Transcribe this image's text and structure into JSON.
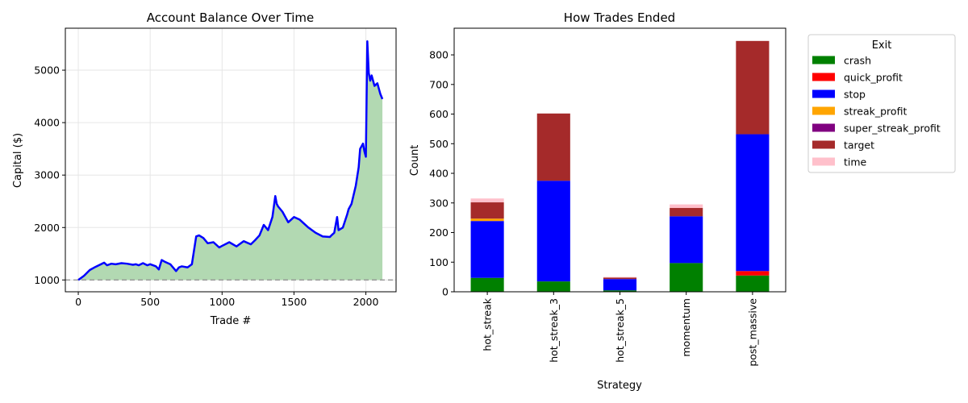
{
  "chart_data": [
    {
      "type": "area",
      "title": "Account Balance Over Time",
      "xlabel": "Trade #",
      "ylabel": "Capital ($)",
      "xlim": [
        -90,
        2210
      ],
      "ylim": [
        775,
        5800
      ],
      "xticks": [
        0,
        500,
        1000,
        1500,
        2000
      ],
      "yticks": [
        1000,
        2000,
        3000,
        4000,
        5000
      ],
      "grid": true,
      "line_color": "#0000ff",
      "fill_color": "#b2d9b2",
      "baseline": {
        "value": 1000,
        "style": "dashed",
        "color": "#999999"
      },
      "series": [
        {
          "x": [
            0,
            40,
            80,
            120,
            150,
            180,
            200,
            230,
            260,
            300,
            340,
            380,
            400,
            420,
            450,
            480,
            500,
            540,
            560,
            580,
            600,
            640,
            680,
            700,
            720,
            760,
            790,
            820,
            840,
            870,
            900,
            940,
            980,
            1000,
            1050,
            1100,
            1150,
            1200,
            1230,
            1260,
            1290,
            1320,
            1350,
            1370,
            1380,
            1390,
            1420,
            1460,
            1500,
            1540,
            1560,
            1600,
            1650,
            1700,
            1750,
            1760,
            1780,
            1800,
            1810,
            1840,
            1870,
            1880,
            1900,
            1930,
            1950,
            1960,
            1980,
            1990,
            2000,
            2010,
            2020,
            2030,
            2040,
            2060,
            2080,
            2100,
            2115
          ],
          "y": [
            1000,
            1080,
            1190,
            1250,
            1290,
            1330,
            1280,
            1310,
            1300,
            1320,
            1310,
            1290,
            1300,
            1280,
            1320,
            1280,
            1300,
            1260,
            1200,
            1380,
            1350,
            1300,
            1170,
            1240,
            1260,
            1240,
            1300,
            1830,
            1850,
            1800,
            1700,
            1720,
            1620,
            1650,
            1720,
            1640,
            1740,
            1680,
            1760,
            1850,
            2050,
            1950,
            2200,
            2600,
            2450,
            2400,
            2300,
            2100,
            2200,
            2150,
            2100,
            2000,
            1900,
            1830,
            1820,
            1850,
            1900,
            2200,
            1950,
            2000,
            2250,
            2350,
            2450,
            2800,
            3150,
            3500,
            3600,
            3450,
            3350,
            5550,
            4950,
            4800,
            4900,
            4700,
            4750,
            4550,
            4450
          ]
        }
      ]
    },
    {
      "type": "bar",
      "stacked": true,
      "title": "How Trades Ended",
      "xlabel": "Strategy",
      "ylabel": "Count",
      "ylim": [
        0,
        890
      ],
      "yticks": [
        0,
        100,
        200,
        300,
        400,
        500,
        600,
        700,
        800
      ],
      "categories": [
        "hot_streak",
        "hot_streak_3",
        "hot_streak_5",
        "momentum",
        "post_massive"
      ],
      "legend": {
        "title": "Exit",
        "placement": "outside upper right"
      },
      "series": [
        {
          "name": "crash",
          "color": "#008000",
          "values": [
            47,
            35,
            5,
            97,
            55
          ]
        },
        {
          "name": "quick_profit",
          "color": "#ff0000",
          "values": [
            0,
            0,
            0,
            0,
            15
          ]
        },
        {
          "name": "stop",
          "color": "#0000ff",
          "values": [
            192,
            340,
            38,
            158,
            462
          ]
        },
        {
          "name": "streak_profit",
          "color": "#ffa500",
          "values": [
            8,
            0,
            0,
            0,
            0
          ]
        },
        {
          "name": "super_streak_profit",
          "color": "#800080",
          "values": [
            0,
            0,
            0,
            0,
            0
          ]
        },
        {
          "name": "target",
          "color": "#a52a2a",
          "values": [
            55,
            227,
            5,
            28,
            315
          ]
        },
        {
          "name": "time",
          "color": "#ffc0cb",
          "values": [
            13,
            0,
            2,
            12,
            0
          ]
        }
      ]
    }
  ]
}
